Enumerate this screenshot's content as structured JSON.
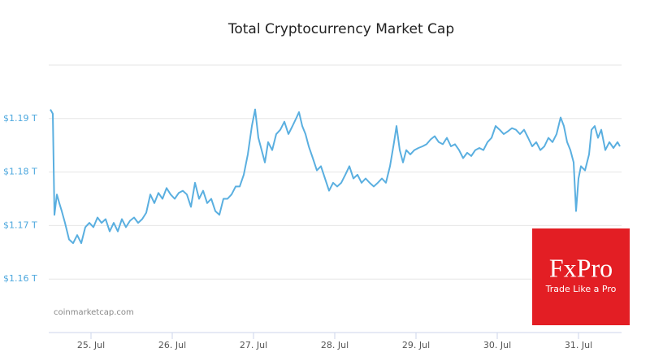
{
  "chart_data": {
    "type": "line",
    "title": "Total Cryptocurrency Market Cap",
    "x": [
      24.5,
      24.53,
      24.55,
      24.58,
      24.61,
      24.64,
      24.68,
      24.73,
      24.78,
      24.83,
      24.88,
      24.93,
      24.98,
      25.03,
      25.08,
      25.13,
      25.18,
      25.23,
      25.28,
      25.33,
      25.38,
      25.43,
      25.48,
      25.53,
      25.58,
      25.63,
      25.68,
      25.73,
      25.78,
      25.83,
      25.88,
      25.93,
      25.98,
      26.03,
      26.08,
      26.13,
      26.18,
      26.23,
      26.28,
      26.33,
      26.38,
      26.43,
      26.48,
      26.53,
      26.58,
      26.63,
      26.68,
      26.73,
      26.78,
      26.83,
      26.88,
      26.93,
      26.98,
      27.02,
      27.06,
      27.1,
      27.14,
      27.18,
      27.23,
      27.28,
      27.33,
      27.38,
      27.43,
      27.48,
      27.53,
      27.56,
      27.6,
      27.64,
      27.68,
      27.73,
      27.78,
      27.83,
      27.88,
      27.93,
      27.98,
      28.03,
      28.08,
      28.13,
      28.18,
      28.23,
      28.28,
      28.33,
      28.38,
      28.43,
      28.48,
      28.53,
      28.58,
      28.63,
      28.68,
      28.73,
      28.76,
      28.8,
      28.84,
      28.88,
      28.93,
      28.98,
      29.03,
      29.08,
      29.13,
      29.18,
      29.23,
      29.28,
      29.33,
      29.38,
      29.43,
      29.48,
      29.53,
      29.58,
      29.63,
      29.68,
      29.73,
      29.78,
      29.83,
      29.88,
      29.93,
      29.98,
      30.03,
      30.08,
      30.13,
      30.18,
      30.23,
      30.28,
      30.33,
      30.38,
      30.43,
      30.48,
      30.53,
      30.58,
      30.63,
      30.68,
      30.73,
      30.78,
      30.82,
      30.86,
      30.9,
      30.94,
      30.97,
      31.0,
      31.03,
      31.08,
      31.13,
      31.16,
      31.2,
      31.24,
      31.28,
      31.33,
      31.38,
      31.43,
      31.48,
      31.51
    ],
    "values": [
      1.1917,
      1.1909,
      1.172,
      1.1758,
      1.1742,
      1.1727,
      1.1705,
      1.1674,
      1.1667,
      1.1682,
      1.1667,
      1.1697,
      1.1705,
      1.1697,
      1.1715,
      1.1705,
      1.1712,
      1.1689,
      1.1705,
      1.1689,
      1.1712,
      1.1697,
      1.1709,
      1.1715,
      1.1705,
      1.1712,
      1.1724,
      1.1758,
      1.1742,
      1.1761,
      1.175,
      1.177,
      1.1758,
      1.175,
      1.1761,
      1.1765,
      1.1758,
      1.1735,
      1.178,
      1.175,
      1.1765,
      1.1742,
      1.175,
      1.1727,
      1.172,
      1.175,
      1.175,
      1.1758,
      1.1773,
      1.1773,
      1.1795,
      1.1833,
      1.1886,
      1.1917,
      1.1864,
      1.1841,
      1.1818,
      1.1856,
      1.1841,
      1.1871,
      1.1879,
      1.1894,
      1.1871,
      1.1886,
      1.1902,
      1.1912,
      1.1886,
      1.1871,
      1.1848,
      1.1826,
      1.1803,
      1.1811,
      1.1788,
      1.1765,
      1.178,
      1.1773,
      1.178,
      1.1795,
      1.1811,
      1.1788,
      1.1795,
      1.178,
      1.1788,
      1.178,
      1.1773,
      1.178,
      1.1788,
      1.178,
      1.1811,
      1.1856,
      1.1886,
      1.1841,
      1.1818,
      1.1841,
      1.1833,
      1.1841,
      1.1845,
      1.1848,
      1.1852,
      1.1861,
      1.1867,
      1.1856,
      1.1852,
      1.1864,
      1.1848,
      1.1852,
      1.1841,
      1.1826,
      1.1836,
      1.183,
      1.1841,
      1.1845,
      1.1841,
      1.1856,
      1.1864,
      1.1886,
      1.1879,
      1.1871,
      1.1876,
      1.1882,
      1.1879,
      1.1871,
      1.1879,
      1.1864,
      1.1848,
      1.1856,
      1.1841,
      1.1848,
      1.1864,
      1.1856,
      1.1871,
      1.1902,
      1.1886,
      1.1856,
      1.1841,
      1.1818,
      1.1727,
      1.1788,
      1.1811,
      1.1803,
      1.1833,
      1.1879,
      1.1886,
      1.1864,
      1.1879,
      1.1841,
      1.1856,
      1.1845,
      1.1856,
      1.1848
    ],
    "color": "#5aafe0",
    "xlim": [
      24.48,
      31.53
    ],
    "xticks": [
      {
        "value": 25,
        "label": "25. Jul"
      },
      {
        "value": 26,
        "label": "26. Jul"
      },
      {
        "value": 27,
        "label": "27. Jul"
      },
      {
        "value": 28,
        "label": "28. Jul"
      },
      {
        "value": 29,
        "label": "29. Jul"
      },
      {
        "value": 30,
        "label": "30. Jul"
      },
      {
        "value": 31,
        "label": "31. Jul"
      }
    ],
    "ylim": [
      1.15,
      1.2
    ],
    "yticks": [
      {
        "value": 1.16,
        "label": "$1.16 T"
      },
      {
        "value": 1.17,
        "label": "$1.17 T"
      },
      {
        "value": 1.18,
        "label": "$1.18 T"
      },
      {
        "value": 1.19,
        "label": "$1.19 T"
      }
    ],
    "grid": true,
    "annotations": {
      "source": "coinmarketcap.com",
      "logo": "FxPro",
      "slogan": "Trade Like a Pro"
    }
  }
}
